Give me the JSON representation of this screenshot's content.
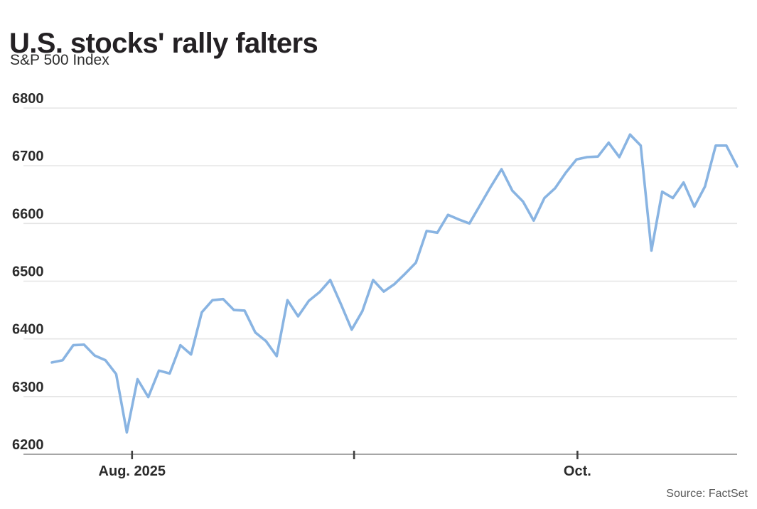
{
  "header": {
    "title": "U.S. stocks' rally falters",
    "subtitle": "S&P 500 Index"
  },
  "footer": {
    "source": "Source: FactSet"
  },
  "colors": {
    "price_line": "#89b4e2",
    "gridline": "#e5e5e5",
    "axis_line": "#9a9a9a",
    "tick_mark": "#404040",
    "axis_text": "#2b2b2b",
    "title_text": "#242124",
    "source_text": "#595959"
  },
  "chart_data": {
    "type": "line",
    "title": "U.S. stocks' rally falters",
    "subtitle": "S&P 500 Index",
    "series_name": "S&P 500 Index daily close",
    "xlabel": "",
    "ylabel": "",
    "ylim": [
      6200,
      6800
    ],
    "y_ticks": [
      6800,
      6700,
      6600,
      6500,
      6400,
      6300,
      6200
    ],
    "x_ticks": [
      {
        "label": "Aug. 2025",
        "position": 0.117
      },
      {
        "label": "",
        "position": 0.441
      },
      {
        "label": "Oct.",
        "position": 0.767
      }
    ],
    "grid": "horizontal",
    "legend": "none",
    "x": [
      "2025-07-23",
      "2025-07-24",
      "2025-07-25",
      "2025-07-28",
      "2025-07-29",
      "2025-07-30",
      "2025-07-31",
      "2025-08-01",
      "2025-08-04",
      "2025-08-05",
      "2025-08-06",
      "2025-08-07",
      "2025-08-08",
      "2025-08-11",
      "2025-08-12",
      "2025-08-13",
      "2025-08-14",
      "2025-08-15",
      "2025-08-18",
      "2025-08-19",
      "2025-08-20",
      "2025-08-21",
      "2025-08-22",
      "2025-08-25",
      "2025-08-26",
      "2025-08-27",
      "2025-08-28",
      "2025-08-29",
      "2025-09-02",
      "2025-09-03",
      "2025-09-04",
      "2025-09-05",
      "2025-09-08",
      "2025-09-09",
      "2025-09-10",
      "2025-09-11",
      "2025-09-12",
      "2025-09-15",
      "2025-09-16",
      "2025-09-17",
      "2025-09-18",
      "2025-09-19",
      "2025-09-22",
      "2025-09-23",
      "2025-09-24",
      "2025-09-25",
      "2025-09-26",
      "2025-09-29",
      "2025-09-30",
      "2025-10-01",
      "2025-10-02",
      "2025-10-03",
      "2025-10-06",
      "2025-10-07",
      "2025-10-08",
      "2025-10-09",
      "2025-10-10",
      "2025-10-13",
      "2025-10-14",
      "2025-10-15",
      "2025-10-16",
      "2025-10-17",
      "2025-10-20",
      "2025-10-21",
      "2025-10-22"
    ],
    "values": [
      6359,
      6363,
      6389,
      6390,
      6371,
      6363,
      6339,
      6238,
      6330,
      6299,
      6345,
      6340,
      6389,
      6373,
      6446,
      6467,
      6469,
      6450,
      6449,
      6411,
      6396,
      6370,
      6467,
      6439,
      6466,
      6481,
      6502,
      6460,
      6416,
      6448,
      6502,
      6482,
      6495,
      6513,
      6532,
      6587,
      6584,
      6615,
      6607,
      6600,
      6632,
      6664,
      6694,
      6657,
      6638,
      6605,
      6644,
      6661,
      6688,
      6711,
      6715,
      6716,
      6740,
      6715,
      6754,
      6735,
      6553,
      6655,
      6644,
      6671,
      6629,
      6664,
      6735,
      6735,
      6699
    ]
  }
}
